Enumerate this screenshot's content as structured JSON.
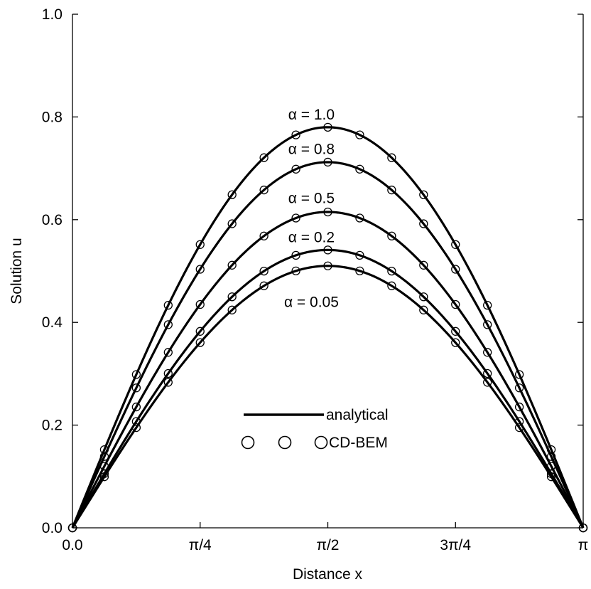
{
  "chart_data": {
    "type": "line",
    "xlabel": "Distance x",
    "ylabel": "Solution u",
    "xlim": [
      0,
      3.14159265
    ],
    "ylim": [
      0,
      1.0
    ],
    "grid": false,
    "x_ticks": [
      {
        "value": 0,
        "label": "0.0"
      },
      {
        "value": 0.785398,
        "label": "π/4"
      },
      {
        "value": 1.570796,
        "label": "π/2"
      },
      {
        "value": 2.356194,
        "label": "3π/4"
      },
      {
        "value": 3.141593,
        "label": "π"
      }
    ],
    "y_ticks": [
      {
        "value": 0.0,
        "label": "0.0"
      },
      {
        "value": 0.2,
        "label": "0.2"
      },
      {
        "value": 0.4,
        "label": "0.4"
      },
      {
        "value": 0.6,
        "label": "0.6"
      },
      {
        "value": 0.8,
        "label": "0.8"
      },
      {
        "value": 1.0,
        "label": "1.0"
      }
    ],
    "series": [
      {
        "label": "α = 1.0",
        "peak": 0.78,
        "label_x": 1.47,
        "label_y": 0.795
      },
      {
        "label": "α = 0.8",
        "peak": 0.712,
        "label_x": 1.47,
        "label_y": 0.728
      },
      {
        "label": "α = 0.5",
        "peak": 0.615,
        "label_x": 1.47,
        "label_y": 0.632
      },
      {
        "label": "α = 0.2",
        "peak": 0.541,
        "label_x": 1.47,
        "label_y": 0.556
      },
      {
        "label": "α = 0.05",
        "peak": 0.51,
        "label_x": 1.47,
        "label_y": 0.43
      }
    ],
    "marker_x_fractions": [
      0,
      0.0625,
      0.125,
      0.1875,
      0.25,
      0.3125,
      0.375,
      0.4375,
      0.5,
      0.5625,
      0.625,
      0.6875,
      0.75,
      0.8125,
      0.875,
      0.9375,
      1.0
    ],
    "legend": {
      "position": "bottom-center",
      "entries": [
        "analytical",
        "CD-BEM"
      ]
    }
  }
}
